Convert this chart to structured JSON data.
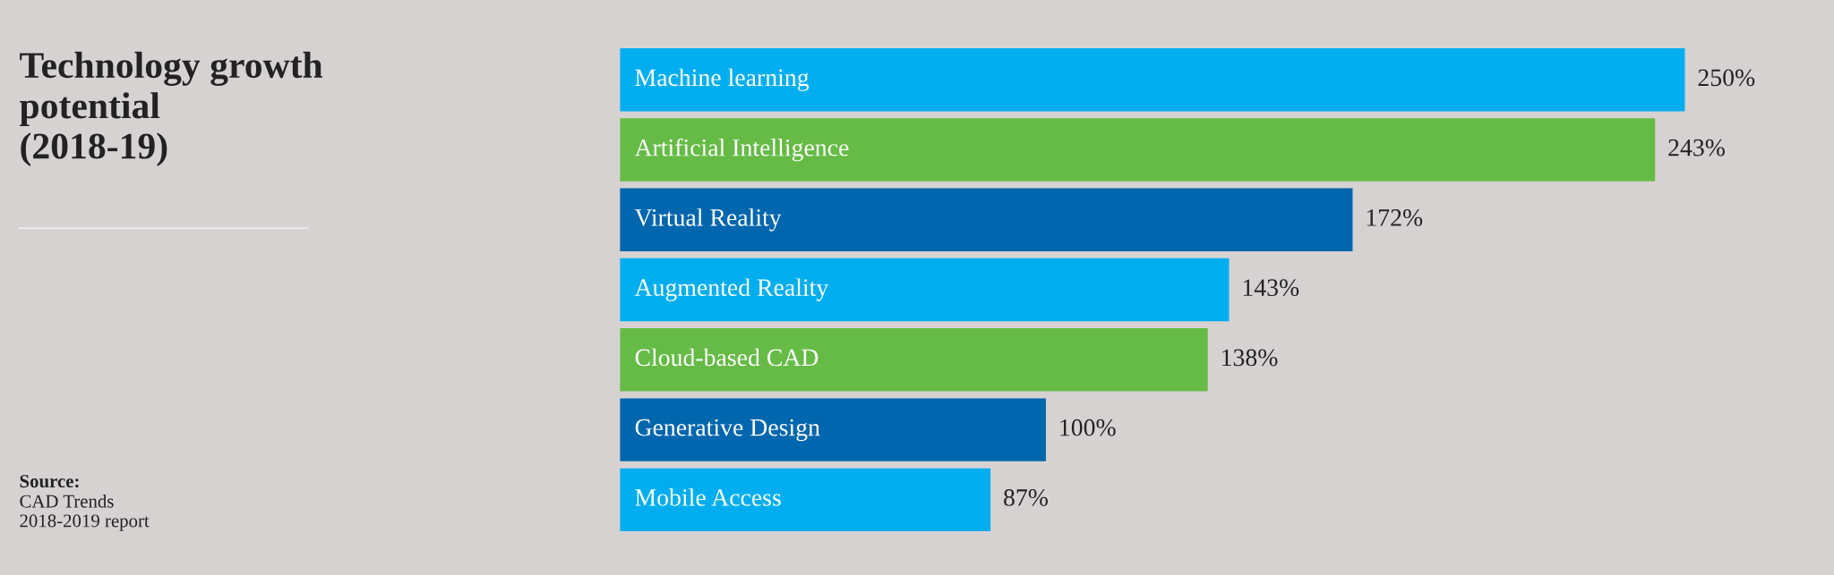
{
  "chart_data": {
    "type": "bar",
    "orientation": "horizontal",
    "title": "Technology growth\npotential\n(2018-19)",
    "categories": [
      "Machine learning",
      "Artificial Intelligence",
      "Virtual Reality",
      "Augmented Reality",
      "Cloud-based CAD",
      "Generative Design",
      "Mobile Access"
    ],
    "values": [
      250,
      243,
      172,
      143,
      138,
      100,
      87
    ],
    "colors": [
      "#00aeef",
      "#66bb46",
      "#0066ad",
      "#00aeef",
      "#66bb46",
      "#0066ad",
      "#00aeef"
    ],
    "value_labels": [
      "250%",
      "243%",
      "172%",
      "143%",
      "138%",
      "100%",
      "87%"
    ],
    "xlim": [
      0,
      285
    ],
    "legend": false,
    "annotations": [
      "Source:",
      "CAD Trends\n2018-2019 report"
    ]
  }
}
